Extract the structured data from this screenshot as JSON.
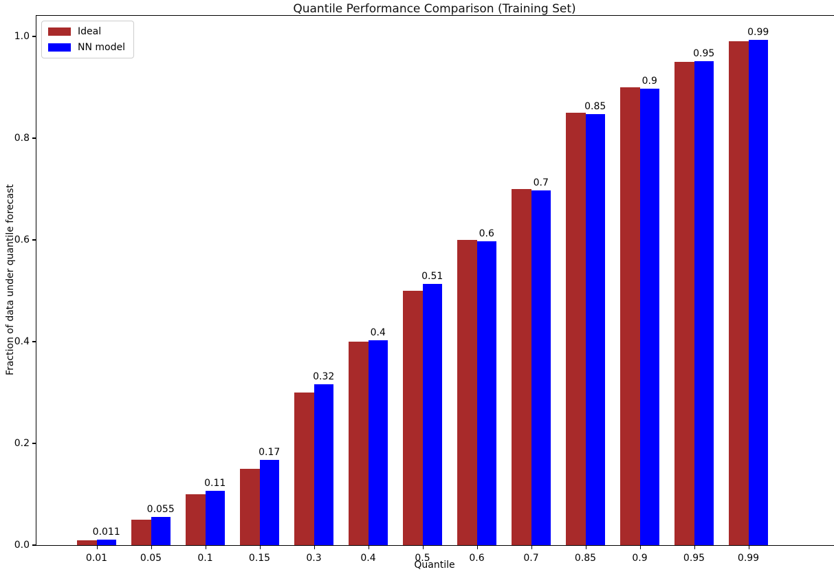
{
  "chart_data": {
    "type": "bar",
    "title": "Quantile Performance Comparison (Training Set)",
    "xlabel": "Quantile",
    "ylabel": "Fraction of data under quantile forecast",
    "categories": [
      "0.01",
      "0.05",
      "0.1",
      "0.15",
      "0.3",
      "0.4",
      "0.5",
      "0.6",
      "0.7",
      "0.85",
      "0.9",
      "0.95",
      "0.99"
    ],
    "series": [
      {
        "name": "Ideal",
        "color": "#a82a2a",
        "values": [
          0.01,
          0.05,
          0.1,
          0.15,
          0.3,
          0.4,
          0.5,
          0.6,
          0.7,
          0.85,
          0.9,
          0.95,
          0.99
        ]
      },
      {
        "name": "NN model",
        "color": "#0000ff",
        "values": [
          0.011,
          0.055,
          0.107,
          0.168,
          0.316,
          0.403,
          0.514,
          0.597,
          0.698,
          0.847,
          0.897,
          0.951,
          0.993
        ],
        "bar_labels": [
          "0.011",
          "0.055",
          "0.11",
          "0.17",
          "0.32",
          "0.4",
          "0.51",
          "0.6",
          "0.7",
          "0.85",
          "0.9",
          "0.95",
          "0.99"
        ]
      }
    ],
    "yticks": [
      0.0,
      0.2,
      0.4,
      0.6,
      0.8,
      1.0
    ],
    "ytick_labels": [
      "0.0",
      "0.2",
      "0.4",
      "0.6",
      "0.8",
      "1.0"
    ],
    "ylim": [
      0,
      1.04
    ],
    "grid": false,
    "legend_position": "upper left",
    "background_color": "#ffffff",
    "axis_color": "#000000"
  }
}
